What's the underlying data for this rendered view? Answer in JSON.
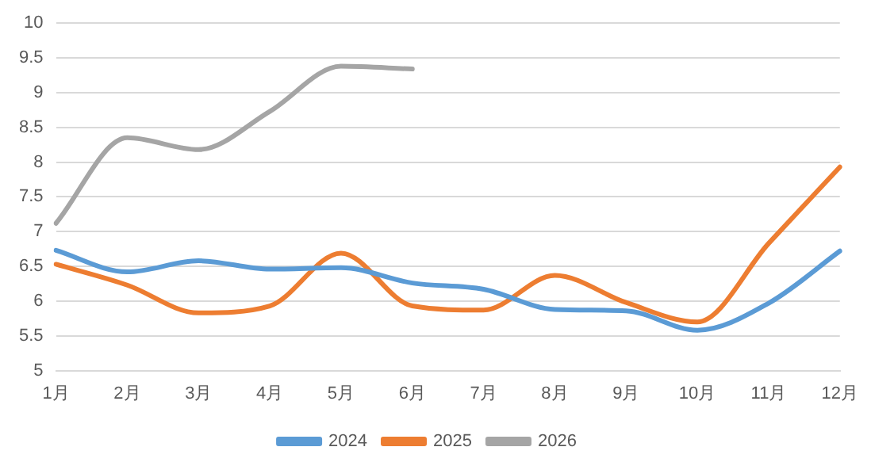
{
  "chart_data": {
    "type": "line",
    "categories": [
      "1月",
      "2月",
      "3月",
      "4月",
      "5月",
      "6月",
      "7月",
      "8月",
      "9月",
      "10月",
      "11月",
      "12月"
    ],
    "series": [
      {
        "name": "2024",
        "color": "#5b9bd5",
        "values": [
          6.73,
          6.42,
          6.58,
          6.46,
          6.48,
          6.26,
          6.17,
          5.88,
          5.86,
          5.58,
          5.97,
          6.72
        ]
      },
      {
        "name": "2025",
        "color": "#ed7d31",
        "values": [
          6.53,
          6.23,
          5.83,
          5.93,
          6.69,
          5.93,
          5.87,
          6.37,
          5.98,
          5.7,
          6.83,
          7.93
        ]
      },
      {
        "name": "2026",
        "color": "#a5a5a5",
        "values": [
          7.12,
          8.35,
          8.18,
          8.73,
          9.38,
          9.34,
          null,
          null,
          null,
          null,
          null,
          null
        ]
      }
    ],
    "ylim": [
      5,
      10
    ],
    "yticks": [
      5,
      5.5,
      6,
      6.5,
      7,
      7.5,
      8,
      8.5,
      9,
      9.5,
      10
    ],
    "grid": "y",
    "legend": "bottom",
    "marker": "none",
    "line_style": "solid"
  }
}
